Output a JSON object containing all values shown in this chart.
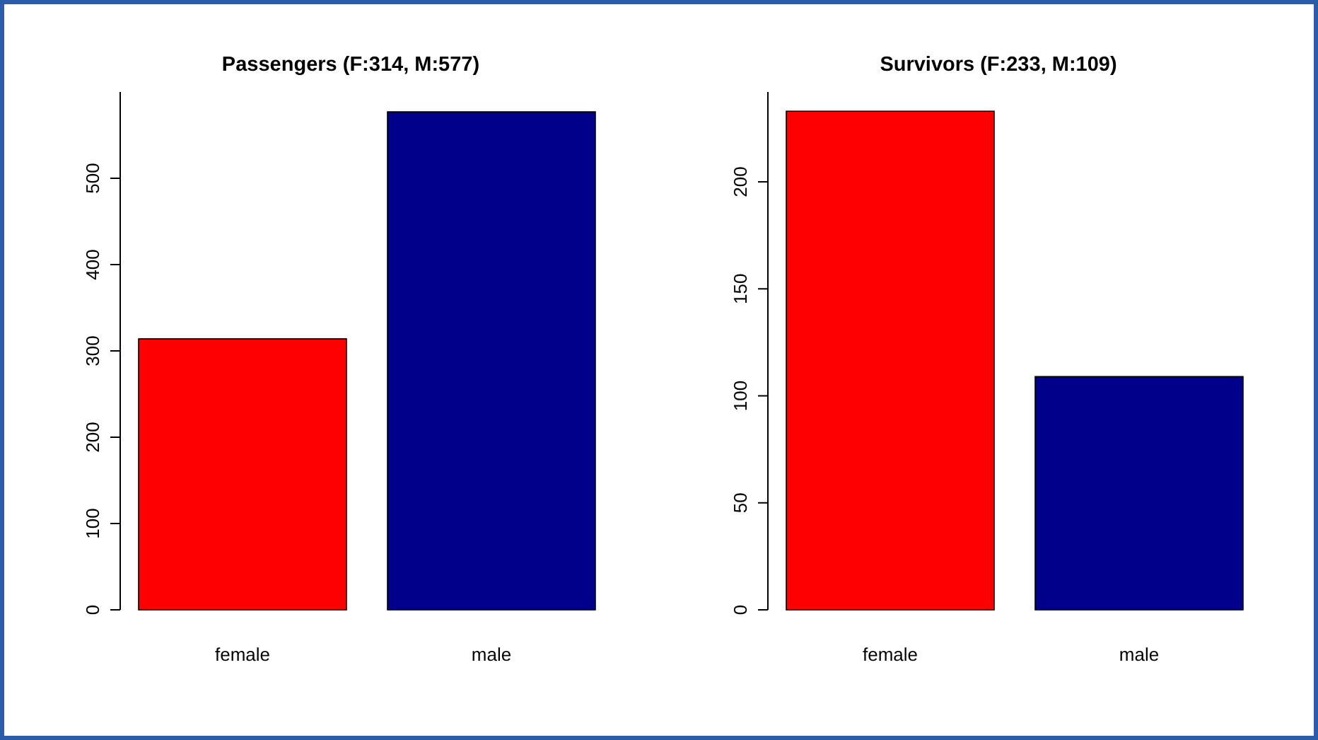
{
  "chart_data": [
    {
      "type": "bar",
      "title": "Passengers (F:314, M:577)",
      "categories": [
        "female",
        "male"
      ],
      "values": [
        314,
        577
      ],
      "colors": [
        "#ff0000",
        "#00008b"
      ],
      "ylim": [
        0,
        600
      ],
      "yticks": [
        0,
        100,
        200,
        300,
        400,
        500
      ]
    },
    {
      "type": "bar",
      "title": "Survivors (F:233, M:109)",
      "categories": [
        "female",
        "male"
      ],
      "values": [
        233,
        109
      ],
      "colors": [
        "#ff0000",
        "#00008b"
      ],
      "ylim": [
        0,
        242
      ],
      "yticks": [
        0,
        50,
        100,
        150,
        200
      ]
    }
  ]
}
